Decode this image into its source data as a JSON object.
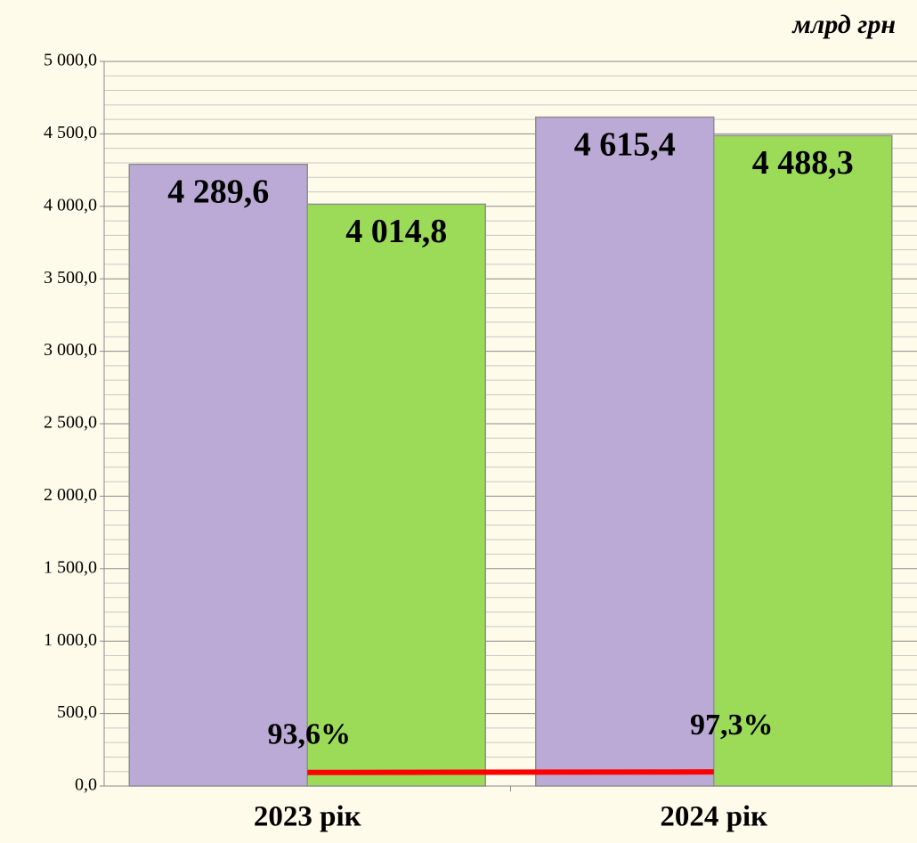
{
  "chart_data": {
    "type": "bar",
    "unit_label": "млрд грн",
    "categories": [
      "2023 рік",
      "2024 рік"
    ],
    "series": [
      {
        "color": "#bcaad6",
        "values": [
          4289.6,
          4615.4
        ],
        "value_labels": [
          "4 289,6",
          "4 615,4"
        ]
      },
      {
        "color": "#9bdb58",
        "values": [
          4014.8,
          4488.3
        ],
        "value_labels": [
          "4 014,8",
          "4 488,3"
        ]
      },
      {
        "type": "line",
        "color": "#ff0000",
        "values": [
          93.6,
          97.3
        ],
        "value_labels": [
          "93,6%",
          "97,3%"
        ]
      }
    ],
    "ylim": [
      0,
      5000
    ],
    "yticks": [
      {
        "value": 0,
        "label": "0,0"
      },
      {
        "value": 500,
        "label": "500,0"
      },
      {
        "value": 1000,
        "label": "1 000,0"
      },
      {
        "value": 1500,
        "label": "1 500,0"
      },
      {
        "value": 2000,
        "label": "2 000,0"
      },
      {
        "value": 2500,
        "label": "2 500,0"
      },
      {
        "value": 3000,
        "label": "3 000,0"
      },
      {
        "value": 3500,
        "label": "3 500,0"
      },
      {
        "value": 4000,
        "label": "4 000,0"
      },
      {
        "value": 4500,
        "label": "4 500,0"
      },
      {
        "value": 5000,
        "label": "5 000,0"
      }
    ],
    "grid": true,
    "minor_grid": true
  }
}
